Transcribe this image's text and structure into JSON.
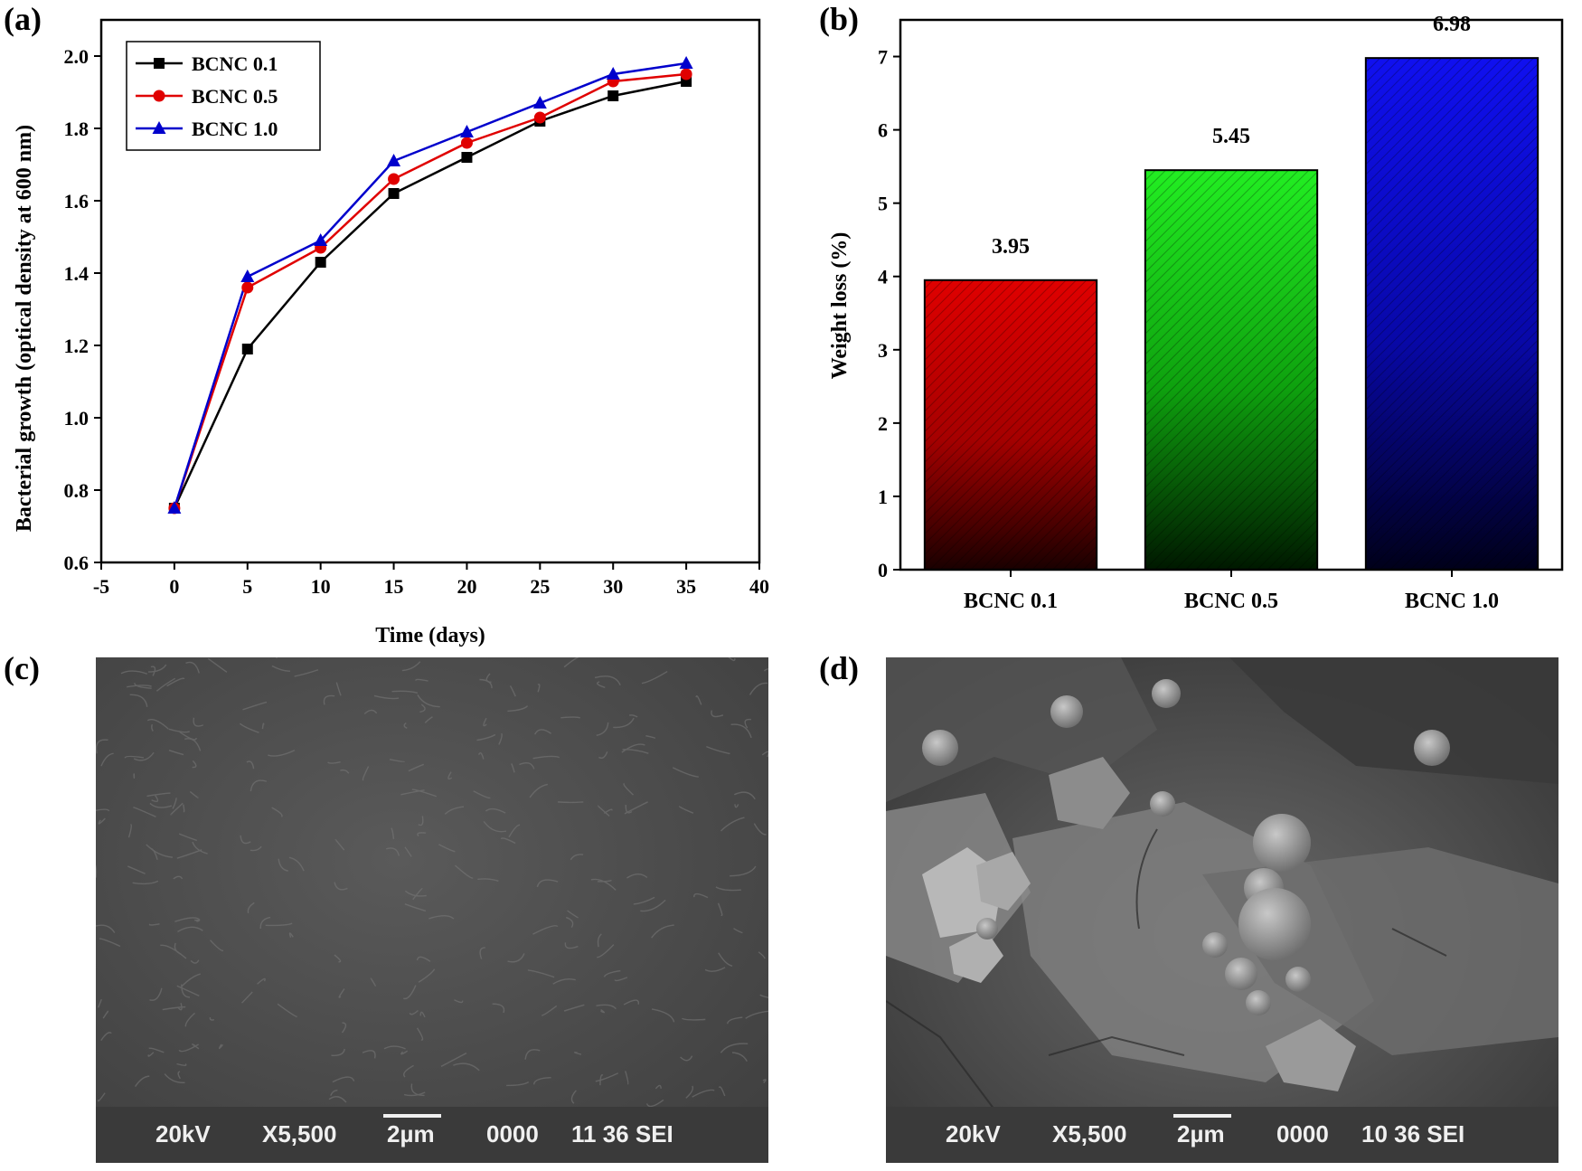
{
  "panels": {
    "a": "(a)",
    "b": "(b)",
    "c": "(c)",
    "d": "(d)"
  },
  "chart_data": [
    {
      "type": "line",
      "xlabel": "Time (days)",
      "ylabel": "Bacterial growth (optical density at 600 nm)",
      "xlim": [
        -5,
        40
      ],
      "ylim": [
        0.6,
        2.1
      ],
      "xticks": [
        -5,
        0,
        5,
        10,
        15,
        20,
        25,
        30,
        35,
        40
      ],
      "yticks": [
        0.6,
        0.8,
        1.0,
        1.2,
        1.4,
        1.6,
        1.8,
        2.0
      ],
      "legend_position": "top-left",
      "grid": false,
      "x": [
        0,
        5,
        10,
        15,
        20,
        25,
        30,
        35
      ],
      "series": [
        {
          "name": "BCNC 0.1",
          "color": "#000000",
          "marker": "square",
          "values": [
            0.75,
            1.19,
            1.43,
            1.62,
            1.72,
            1.82,
            1.89,
            1.93
          ]
        },
        {
          "name": "BCNC 0.5",
          "color": "#e00000",
          "marker": "circle",
          "values": [
            0.75,
            1.36,
            1.47,
            1.66,
            1.76,
            1.83,
            1.93,
            1.95
          ]
        },
        {
          "name": "BCNC 1.0",
          "color": "#0000cc",
          "marker": "triangle",
          "values": [
            0.75,
            1.39,
            1.49,
            1.71,
            1.79,
            1.87,
            1.95,
            1.98
          ]
        }
      ]
    },
    {
      "type": "bar",
      "xlabel": "",
      "ylabel": "Weight loss (%)",
      "ylim": [
        0,
        7.5
      ],
      "yticks": [
        0,
        1,
        2,
        3,
        4,
        5,
        6,
        7
      ],
      "grid": false,
      "categories": [
        "BCNC 0.1",
        "BCNC 0.5",
        "BCNC 1.0"
      ],
      "values": [
        3.95,
        5.45,
        6.98
      ],
      "data_labels": [
        "3.95",
        "5.45",
        "6.98"
      ],
      "colors": [
        "#e00000",
        "#00dd00",
        "#0000ee"
      ]
    }
  ],
  "sem": {
    "c": {
      "kv": "20kV",
      "mag": "X5,500",
      "scale": "2µm",
      "id": "0000",
      "code": "11 36 SEI"
    },
    "d": {
      "kv": "20kV",
      "mag": "X5,500",
      "scale": "2µm",
      "id": "0000",
      "code": "10 36 SEI"
    }
  }
}
